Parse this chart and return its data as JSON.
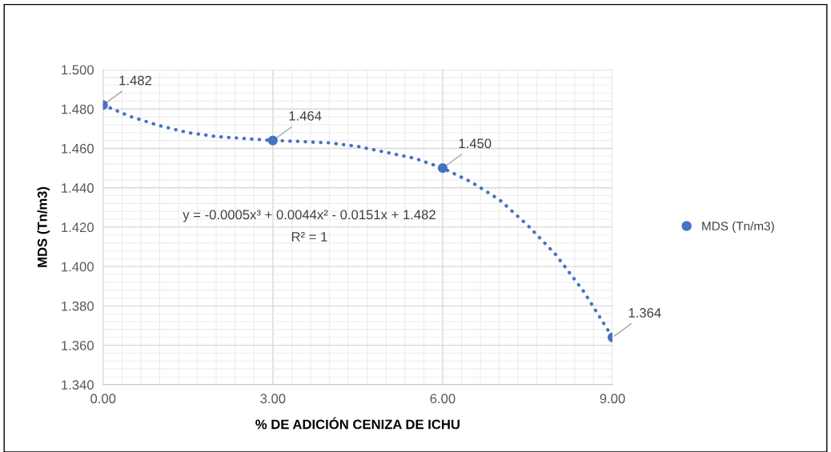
{
  "chart_data": {
    "type": "scatter",
    "xlabel": "% DE ADICIÓN CENIZA DE ICHU",
    "ylabel": "MDS (Tn/m3)",
    "x": [
      0,
      3,
      6,
      9
    ],
    "series": [
      {
        "name": "MDS (Tn/m3)",
        "color": "#4472c4",
        "values": [
          1.482,
          1.464,
          1.45,
          1.364
        ],
        "value_labels": [
          "1.482",
          "1.464",
          "1.450",
          "1.364"
        ],
        "marker": "circle"
      },
      {
        "type": "line",
        "color": "#4472c4",
        "line_style": "dotted",
        "marker": "none",
        "x": [
          0,
          0.5,
          1,
          1.5,
          2,
          2.5,
          3,
          3.5,
          4,
          4.5,
          5,
          5.5,
          6,
          6.5,
          7,
          7.5,
          8,
          8.5,
          9
        ],
        "values": [
          1.482,
          1.476,
          1.4715,
          1.468,
          1.466,
          1.465,
          1.464,
          1.4635,
          1.4628,
          1.461,
          1.458,
          1.455,
          1.45,
          1.443,
          1.434,
          1.421,
          1.406,
          1.387,
          1.364
        ]
      }
    ],
    "annotations": [
      "y = -0.0005x³ + 0.0044x² - 0.0151x + 1.482",
      "R² = 1"
    ],
    "xlim": [
      0,
      9
    ],
    "xticks": [
      {
        "value": 0,
        "label": "0.00"
      },
      {
        "value": 3,
        "label": "3.00"
      },
      {
        "value": 6,
        "label": "6.00"
      },
      {
        "value": 9,
        "label": "9.00"
      }
    ],
    "ylim": [
      1.34,
      1.5
    ],
    "yticks": [
      {
        "value": 1.34,
        "label": "1.340"
      },
      {
        "value": 1.36,
        "label": "1.360"
      },
      {
        "value": 1.38,
        "label": "1.380"
      },
      {
        "value": 1.4,
        "label": "1.400"
      },
      {
        "value": 1.42,
        "label": "1.420"
      },
      {
        "value": 1.44,
        "label": "1.440"
      },
      {
        "value": 1.46,
        "label": "1.460"
      },
      {
        "value": 1.48,
        "label": "1.480"
      },
      {
        "value": 1.5,
        "label": "1.500"
      }
    ],
    "grid": true,
    "legend": "right"
  }
}
